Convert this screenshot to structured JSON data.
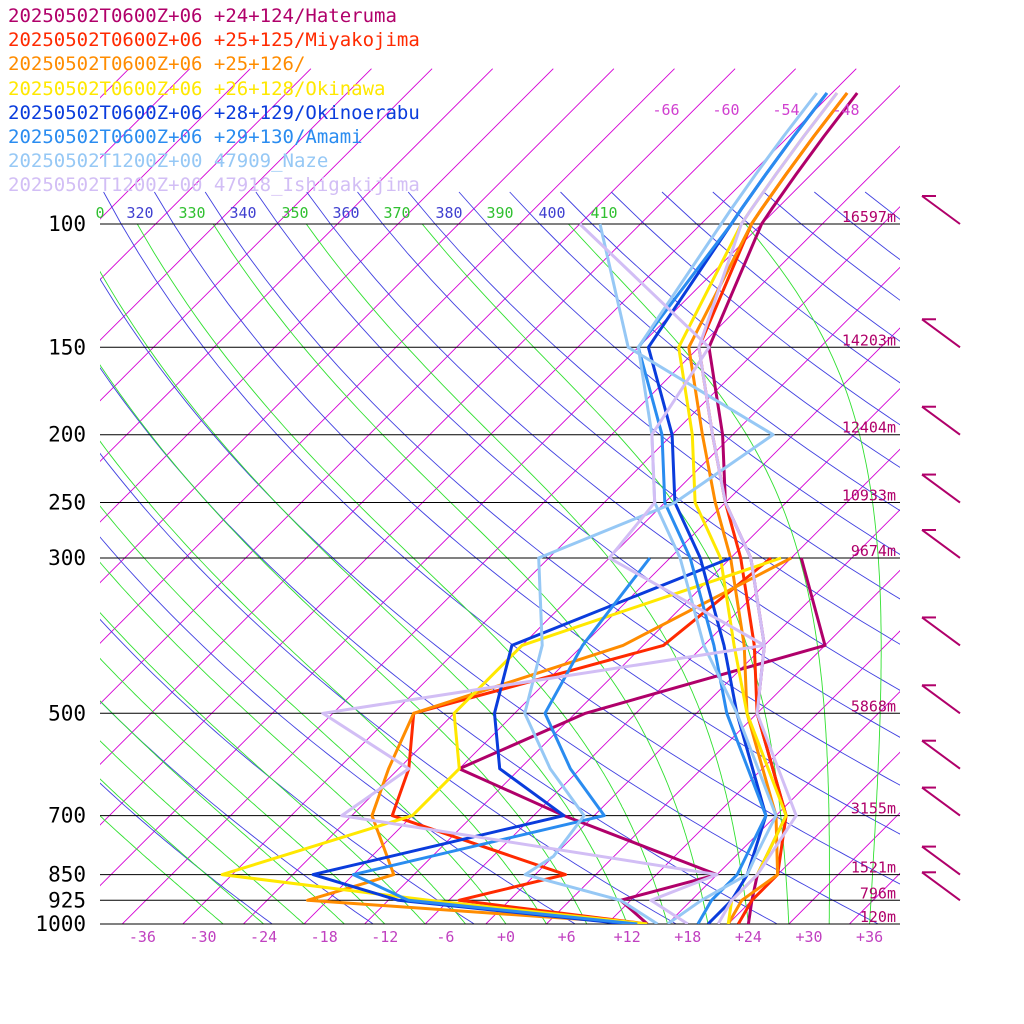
{
  "chart_data": {
    "type": "line",
    "title": "",
    "xlabel": "",
    "ylabel": "",
    "pressure_levels": [
      100,
      150,
      200,
      250,
      300,
      500,
      700,
      850,
      925,
      1000
    ],
    "height_labels": [
      {
        "p": 100,
        "label": "16597m"
      },
      {
        "p": 150,
        "label": "14203m"
      },
      {
        "p": 200,
        "label": "12404m"
      },
      {
        "p": 250,
        "label": "10933m"
      },
      {
        "p": 300,
        "label": "9674m"
      },
      {
        "p": 500,
        "label": "5868m"
      },
      {
        "p": 700,
        "label": "3155m"
      },
      {
        "p": 850,
        "label": "1521m"
      },
      {
        "p": 925,
        "label": "796m"
      },
      {
        "p": 1000,
        "label": "120m"
      }
    ],
    "x_ticks": [
      "-36",
      "-30",
      "-24",
      "-18",
      "-12",
      "-6",
      "+0",
      "+6",
      "+12",
      "+18",
      "+24",
      "+30",
      "+36"
    ],
    "x_tick_values": [
      -36,
      -30,
      -24,
      -18,
      -12,
      -6,
      0,
      6,
      12,
      18,
      24,
      30,
      36
    ],
    "theta_labels": [
      "0",
      "320",
      "330",
      "340",
      "350",
      "360",
      "370",
      "380",
      "390",
      "400",
      "410"
    ],
    "theta_top_labels": [
      "-66",
      "-60",
      "-54",
      "-48"
    ],
    "series": [
      {
        "name": "20250502T0600Z+06 +24+124/Hateruma",
        "color": "#b0006a",
        "temp": [
          [
            1000,
            24
          ],
          [
            925,
            22
          ],
          [
            850,
            20
          ],
          [
            700,
            17
          ],
          [
            500,
            4
          ],
          [
            400,
            -2
          ],
          [
            300,
            -12
          ],
          [
            250,
            -20
          ],
          [
            200,
            -27
          ],
          [
            150,
            -37
          ],
          [
            100,
            -44
          ]
        ],
        "dew": [
          [
            1000,
            14
          ],
          [
            925,
            9
          ],
          [
            850,
            16
          ],
          [
            700,
            -5
          ],
          [
            600,
            -20
          ],
          [
            500,
            -13
          ],
          [
            400,
            4
          ],
          [
            300,
            -7
          ]
        ]
      },
      {
        "name": "20250502T0600Z+06 +25+125/Miyakojima",
        "color": "#ff2a00",
        "temp": [
          [
            1000,
            23
          ],
          [
            925,
            22
          ],
          [
            850,
            22
          ],
          [
            700,
            17
          ],
          [
            500,
            4
          ],
          [
            400,
            -3
          ],
          [
            300,
            -13
          ],
          [
            250,
            -20
          ],
          [
            200,
            -28
          ],
          [
            150,
            -38
          ],
          [
            100,
            -45
          ]
        ],
        "dew": [
          [
            1000,
            14
          ],
          [
            925,
            -7
          ],
          [
            850,
            1
          ],
          [
            700,
            -22
          ],
          [
            600,
            -25
          ],
          [
            500,
            -30
          ],
          [
            400,
            -12
          ],
          [
            300,
            -10
          ]
        ]
      },
      {
        "name": "20250502T0600Z+06 +25+126/",
        "color": "#ff8c00",
        "temp": [
          [
            1000,
            22
          ],
          [
            925,
            21
          ],
          [
            850,
            22
          ],
          [
            700,
            16
          ],
          [
            500,
            3
          ],
          [
            400,
            -4
          ],
          [
            300,
            -14
          ],
          [
            250,
            -21
          ],
          [
            200,
            -29
          ],
          [
            150,
            -39
          ],
          [
            100,
            -45
          ]
        ],
        "dew": [
          [
            1000,
            14
          ],
          [
            925,
            -22
          ],
          [
            850,
            -16
          ],
          [
            700,
            -24
          ],
          [
            600,
            -27
          ],
          [
            500,
            -30
          ],
          [
            400,
            -16
          ],
          [
            300,
            -8
          ]
        ]
      },
      {
        "name": "20250502T0600Z+06 +26+128/Okinawa",
        "color": "#ffe800",
        "temp": [
          [
            1000,
            22
          ],
          [
            925,
            20
          ],
          [
            850,
            20
          ],
          [
            700,
            17
          ],
          [
            500,
            3
          ],
          [
            400,
            -5
          ],
          [
            300,
            -15
          ],
          [
            250,
            -23
          ],
          [
            200,
            -30
          ],
          [
            150,
            -40
          ],
          [
            100,
            -46
          ]
        ],
        "dew": [
          [
            1000,
            14
          ],
          [
            925,
            -10
          ],
          [
            850,
            -33
          ],
          [
            700,
            -20
          ],
          [
            600,
            -20
          ],
          [
            500,
            -26
          ],
          [
            400,
            -26
          ],
          [
            300,
            -9
          ]
        ]
      },
      {
        "name": "20250502T0600Z+06 +28+129/Okinoerabu",
        "color": "#0a3cdc",
        "temp": [
          [
            1000,
            20
          ],
          [
            925,
            20
          ],
          [
            850,
            19
          ],
          [
            700,
            15
          ],
          [
            500,
            2
          ],
          [
            400,
            -6
          ],
          [
            300,
            -17
          ],
          [
            250,
            -25
          ],
          [
            200,
            -32
          ],
          [
            150,
            -43
          ],
          [
            100,
            -47
          ]
        ],
        "dew": [
          [
            1000,
            12
          ],
          [
            925,
            -13
          ],
          [
            850,
            -24
          ],
          [
            700,
            -5
          ],
          [
            600,
            -16
          ],
          [
            500,
            -22
          ],
          [
            400,
            -27
          ],
          [
            300,
            -14
          ]
        ]
      },
      {
        "name": "20250502T0600Z+06 +29+130/Amami",
        "color": "#2a8cf0",
        "temp": [
          [
            1000,
            19
          ],
          [
            925,
            18
          ],
          [
            850,
            18
          ],
          [
            700,
            15
          ],
          [
            500,
            1
          ],
          [
            400,
            -7
          ],
          [
            300,
            -18
          ],
          [
            250,
            -26
          ],
          [
            200,
            -33
          ],
          [
            150,
            -44
          ],
          [
            100,
            -47
          ]
        ],
        "dew": [
          [
            1000,
            13
          ],
          [
            925,
            -12
          ],
          [
            850,
            -20
          ],
          [
            700,
            -1
          ],
          [
            600,
            -9
          ],
          [
            500,
            -17
          ],
          [
            400,
            -20
          ],
          [
            300,
            -22
          ]
        ]
      },
      {
        "name": "20250502T1200Z+00 47909_Naze",
        "color": "#96c8f5",
        "temp": [
          [
            1000,
            16
          ],
          [
            925,
            17
          ],
          [
            850,
            19
          ],
          [
            800,
            18
          ],
          [
            700,
            16
          ],
          [
            500,
            2
          ],
          [
            400,
            -8
          ],
          [
            300,
            -19
          ],
          [
            250,
            -27
          ],
          [
            200,
            -34
          ],
          [
            150,
            -44
          ],
          [
            100,
            -48
          ]
        ],
        "dew": [
          [
            1000,
            15
          ],
          [
            925,
            9
          ],
          [
            850,
            -3
          ],
          [
            800,
            -2
          ],
          [
            700,
            -3
          ],
          [
            600,
            -11
          ],
          [
            500,
            -19
          ],
          [
            400,
            -24
          ],
          [
            300,
            -33
          ],
          [
            250,
            -25
          ],
          [
            200,
            -22
          ],
          [
            150,
            -45
          ],
          [
            100,
            -60
          ]
        ]
      },
      {
        "name": "20250502T1200Z+00 47918_Ishigakijima",
        "color": "#d2bef5",
        "temp": [
          [
            1000,
            21
          ],
          [
            925,
            20
          ],
          [
            850,
            20
          ],
          [
            700,
            18
          ],
          [
            500,
            4
          ],
          [
            400,
            -2
          ],
          [
            300,
            -12
          ],
          [
            250,
            -20
          ],
          [
            200,
            -28
          ],
          [
            150,
            -38
          ],
          [
            100,
            -46
          ]
        ],
        "dew": [
          [
            1000,
            18
          ],
          [
            925,
            12
          ],
          [
            850,
            16
          ],
          [
            700,
            -27
          ],
          [
            600,
            -25
          ],
          [
            500,
            -39
          ],
          [
            400,
            -2
          ],
          [
            300,
            -26
          ],
          [
            250,
            -27
          ],
          [
            200,
            -34
          ],
          [
            150,
            -37
          ],
          [
            100,
            -62
          ]
        ]
      }
    ],
    "wind_barbs_p": [
      100,
      150,
      200,
      250,
      300,
      400,
      500,
      600,
      700,
      850,
      925
    ]
  }
}
